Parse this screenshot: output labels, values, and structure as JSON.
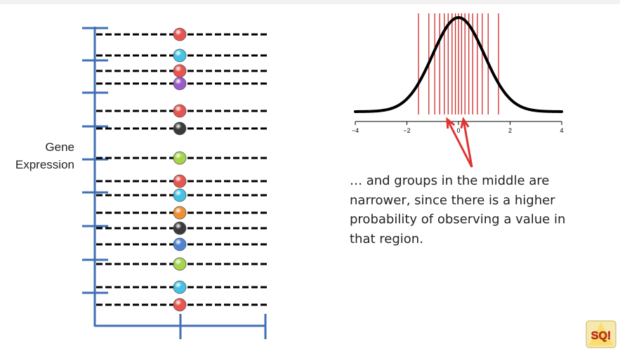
{
  "left_plot": {
    "ylabel_lines": [
      "Gene",
      "Expression"
    ],
    "axis_color": "#3f6fb5",
    "points": [
      {
        "color": "#e8554e"
      },
      {
        "color": "#45c3e6"
      },
      {
        "color": "#e8554e"
      },
      {
        "color": "#9b5bc9"
      },
      {
        "color": "#e8554e"
      },
      {
        "color": "#3a3a3a"
      },
      {
        "color": "#a6d54a"
      },
      {
        "color": "#e8554e"
      },
      {
        "color": "#45c3e6"
      },
      {
        "color": "#f18e32"
      },
      {
        "color": "#3a3a3a"
      },
      {
        "color": "#4e83d6"
      },
      {
        "color": "#a6d54a"
      },
      {
        "color": "#45c3e6"
      },
      {
        "color": "#e8554e"
      }
    ]
  },
  "chart_data": {
    "type": "line",
    "x_ticks": [
      "-4",
      "-2",
      "0",
      "2",
      "4"
    ],
    "xlim": [
      -4,
      4
    ],
    "curve": "standard normal density",
    "vertical_lines_x": [
      -1.55,
      -1.15,
      -0.92,
      -0.73,
      -0.55,
      -0.4,
      -0.25,
      -0.12,
      0,
      0.12,
      0.25,
      0.4,
      0.55,
      0.73,
      0.92,
      1.15,
      1.55
    ],
    "line_color": "#cc2a2a",
    "curve_color": "#000000",
    "arrow_color": "#e03232"
  },
  "caption_lines": [
    "… and groups in the middle are",
    "narrower, since there is a higher",
    "probability of observing a value in",
    "that region."
  ],
  "logo_text": "SQ!"
}
